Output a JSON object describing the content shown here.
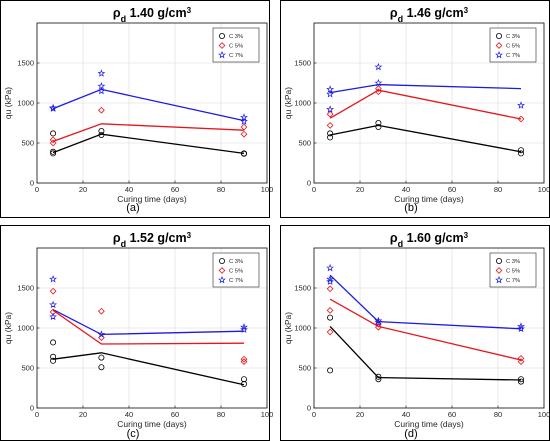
{
  "legend_labels": [
    "C 3%",
    "C 5%",
    "C 7%"
  ],
  "colors": {
    "C 3%": "#000000",
    "C 5%": "#e8141b",
    "C 7%": "#1a1ae6"
  },
  "chart_data": [
    {
      "type": "scatter",
      "title": "ρd 1.40 g/cm3",
      "title_main": "ρ",
      "title_sub": "d",
      "title_rest": " 1.40 g/cm",
      "title_sup": "3",
      "panel_label": "(a)",
      "xlabel": "Curing time (days)",
      "ylabel": "qu (kPa)",
      "xlim": [
        0,
        100
      ],
      "ylim": [
        0,
        2000
      ],
      "xticks": [
        0,
        20,
        40,
        60,
        80,
        100
      ],
      "yticks": [
        0,
        500,
        1000,
        1500
      ],
      "grid": true,
      "legend_position": "top-right",
      "series": [
        {
          "name": "C 3%",
          "line": {
            "x": [
              7,
              28,
              90
            ],
            "y": [
              380,
              610,
              370
            ]
          },
          "points": {
            "x": [
              7,
              7,
              7,
              28,
              28,
              90,
              90
            ],
            "y": [
              370,
              390,
              620,
              600,
              650,
              370,
              365
            ]
          }
        },
        {
          "name": "C 5%",
          "line": {
            "x": [
              7,
              28,
              90
            ],
            "y": [
              520,
              740,
              660
            ]
          },
          "points": {
            "x": [
              7,
              7,
              28,
              90,
              90
            ],
            "y": [
              500,
              540,
              910,
              610,
              700
            ]
          }
        },
        {
          "name": "C 7%",
          "line": {
            "x": [
              7,
              28,
              90
            ],
            "y": [
              930,
              1170,
              780
            ]
          },
          "points": {
            "x": [
              7,
              7,
              28,
              28,
              28,
              90,
              90
            ],
            "y": [
              940,
              930,
              1370,
              1210,
              1150,
              820,
              770
            ]
          }
        }
      ]
    },
    {
      "type": "scatter",
      "title": "ρd 1.46 g/cm3",
      "title_main": "ρ",
      "title_sub": "d",
      "title_rest": " 1.46 g/cm",
      "title_sup": "3",
      "panel_label": "(b)",
      "xlabel": "Curing time (days)",
      "ylabel": "qu (kPa)",
      "xlim": [
        0,
        100
      ],
      "ylim": [
        0,
        2000
      ],
      "xticks": [
        0,
        20,
        40,
        60,
        80,
        100
      ],
      "yticks": [
        0,
        500,
        1000,
        1500
      ],
      "grid": true,
      "legend_position": "top-right",
      "series": [
        {
          "name": "C 3%",
          "line": {
            "x": [
              7,
              28,
              90
            ],
            "y": [
              600,
              720,
              390
            ]
          },
          "points": {
            "x": [
              7,
              7,
              28,
              28,
              90,
              90
            ],
            "y": [
              570,
              620,
              700,
              750,
              410,
              370
            ]
          }
        },
        {
          "name": "C 5%",
          "line": {
            "x": [
              7,
              28,
              90
            ],
            "y": [
              810,
              1160,
              800
            ]
          },
          "points": {
            "x": [
              7,
              7,
              28,
              28,
              90
            ],
            "y": [
              720,
              860,
              1180,
              1140,
              800
            ]
          }
        },
        {
          "name": "C 7%",
          "line": {
            "x": [
              7,
              28,
              90
            ],
            "y": [
              1130,
              1230,
              1180
            ]
          },
          "points": {
            "x": [
              7,
              7,
              7,
              28,
              28,
              90
            ],
            "y": [
              1170,
              1110,
              920,
              1450,
              1250,
              970
            ]
          }
        }
      ]
    },
    {
      "type": "scatter",
      "title": "ρd 1.52 g/cm3",
      "title_main": "ρ",
      "title_sub": "d",
      "title_rest": " 1.52 g/cm",
      "title_sup": "3",
      "panel_label": "(c)",
      "xlabel": "Curing time (days)",
      "ylabel": "qu (kPa)",
      "xlim": [
        0,
        100
      ],
      "ylim": [
        0,
        2000
      ],
      "xticks": [
        0,
        20,
        40,
        60,
        80,
        100
      ],
      "yticks": [
        0,
        500,
        1000,
        1500
      ],
      "grid": true,
      "legend_position": "top-right",
      "series": [
        {
          "name": "C 3%",
          "line": {
            "x": [
              7,
              28,
              90
            ],
            "y": [
              610,
              690,
              290
            ]
          },
          "points": {
            "x": [
              7,
              7,
              7,
              28,
              28,
              90,
              90
            ],
            "y": [
              820,
              640,
              590,
              630,
              510,
              360,
              300
            ]
          }
        },
        {
          "name": "C 5%",
          "line": {
            "x": [
              7,
              28,
              90
            ],
            "y": [
              1220,
              800,
              810
            ]
          },
          "points": {
            "x": [
              7,
              7,
              28,
              28,
              90,
              90
            ],
            "y": [
              1460,
              1200,
              1210,
              880,
              610,
              580
            ]
          }
        },
        {
          "name": "C 7%",
          "line": {
            "x": [
              7,
              28,
              90
            ],
            "y": [
              1230,
              920,
              960
            ]
          },
          "points": {
            "x": [
              7,
              7,
              7,
              28,
              90,
              90
            ],
            "y": [
              1610,
              1290,
              1140,
              920,
              1010,
              980
            ]
          }
        }
      ]
    },
    {
      "type": "scatter",
      "title": "ρd 1.60 g/cm3",
      "title_main": "ρ",
      "title_sub": "d",
      "title_rest": " 1.60 g/cm",
      "title_sup": "3",
      "panel_label": "(d)",
      "xlabel": "Curing time (days)",
      "ylabel": "qu (kPa)",
      "xlim": [
        0,
        100
      ],
      "ylim": [
        0,
        2000
      ],
      "xticks": [
        0,
        20,
        40,
        60,
        80,
        100
      ],
      "yticks": [
        0,
        500,
        1000,
        1500
      ],
      "grid": true,
      "legend_position": "top-right",
      "series": [
        {
          "name": "C 3%",
          "line": {
            "x": [
              7,
              28,
              90
            ],
            "y": [
              1020,
              380,
              350
            ]
          },
          "points": {
            "x": [
              7,
              7,
              28,
              28,
              90,
              90
            ],
            "y": [
              1130,
              470,
              390,
              360,
              360,
              330
            ]
          }
        },
        {
          "name": "C 5%",
          "line": {
            "x": [
              7,
              28,
              90
            ],
            "y": [
              1360,
              1020,
              600
            ]
          },
          "points": {
            "x": [
              7,
              7,
              7,
              28,
              28,
              90,
              90
            ],
            "y": [
              1490,
              1220,
              950,
              1050,
              1010,
              620,
              580
            ]
          }
        },
        {
          "name": "C 7%",
          "line": {
            "x": [
              7,
              28,
              90
            ],
            "y": [
              1660,
              1080,
              990
            ]
          },
          "points": {
            "x": [
              7,
              7,
              7,
              28,
              28,
              90,
              90
            ],
            "y": [
              1750,
              1610,
              1580,
              1090,
              1070,
              1020,
              990
            ]
          }
        }
      ]
    }
  ]
}
